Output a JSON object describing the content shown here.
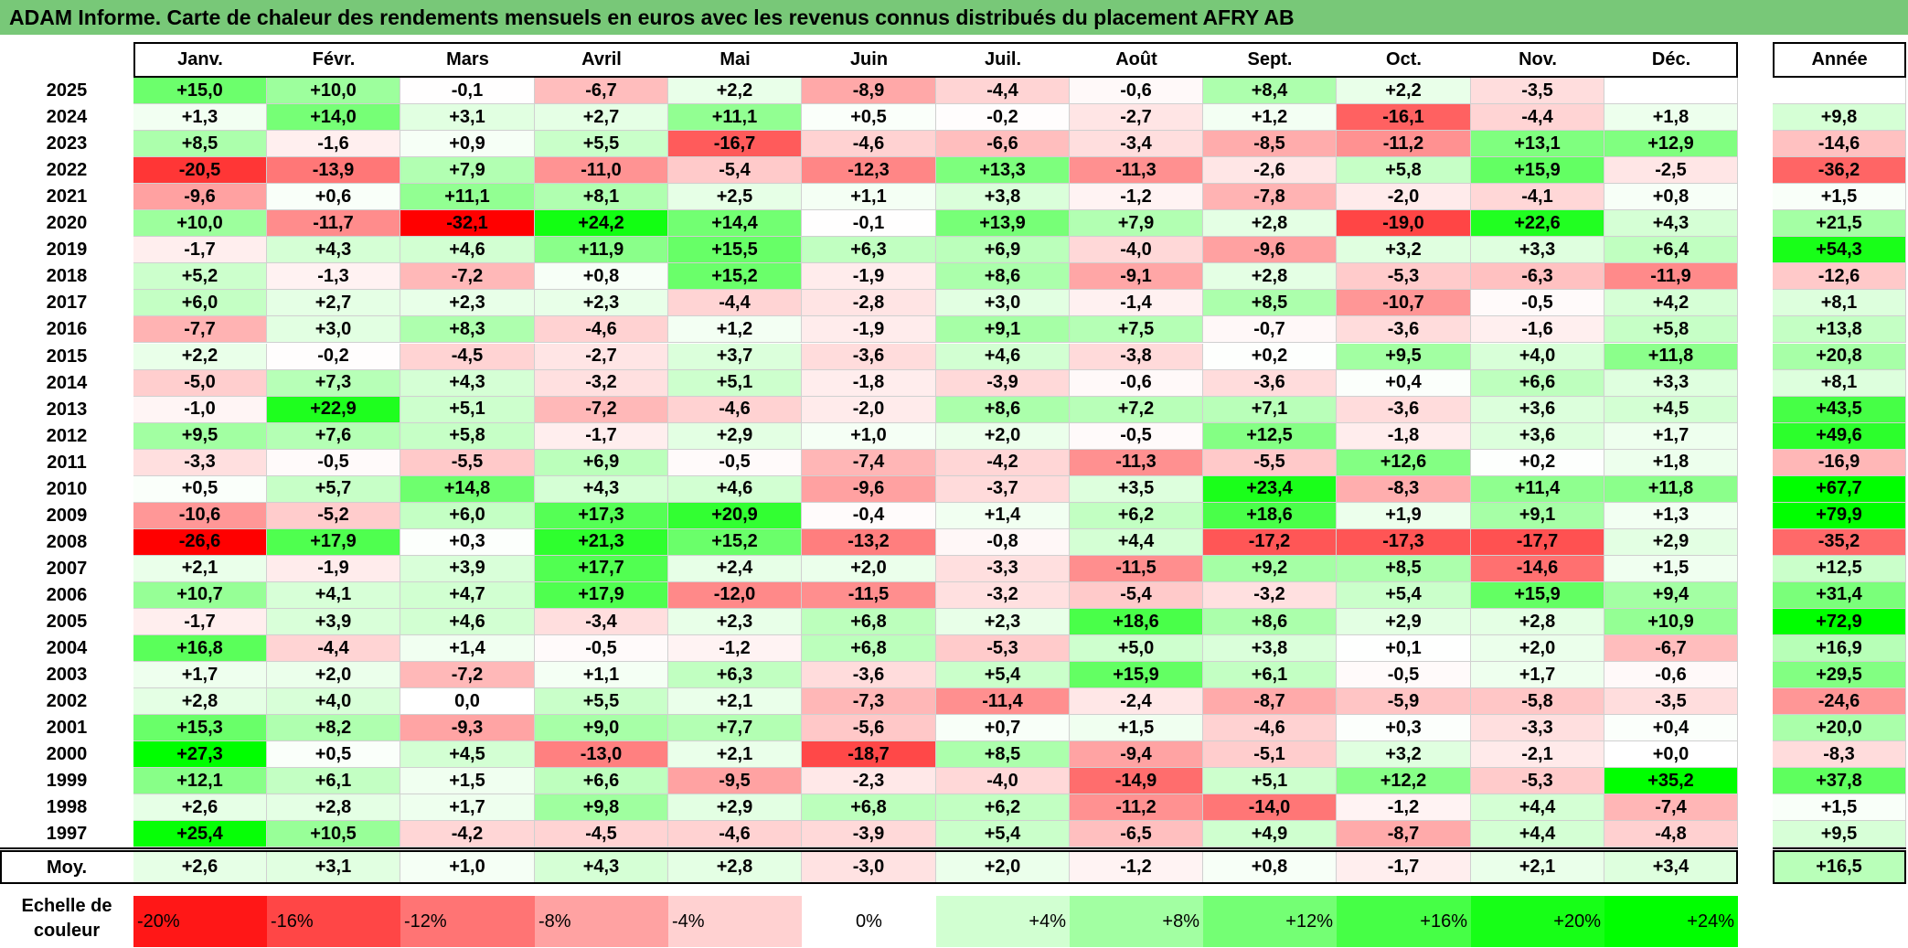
{
  "title": "ADAM Informe. Carte de chaleur des rendements mensuels en euros avec les revenus connus distribués du placement AFRY AB",
  "chart_data": {
    "type": "heatmap",
    "title": "ADAM Informe. Carte de chaleur des rendements mensuels en euros avec les revenus connus distribués du placement AFRY AB",
    "months": [
      "Janv.",
      "Févr.",
      "Mars",
      "Avril",
      "Mai",
      "Juin",
      "Juil.",
      "Août",
      "Sept.",
      "Oct.",
      "Nov.",
      "Déc."
    ],
    "year_column_label": "Année",
    "rows": [
      {
        "year": "2025",
        "values": [
          "+15,0",
          "+10,0",
          "-0,1",
          "-6,7",
          "+2,2",
          "-8,9",
          "-4,4",
          "-0,6",
          "+8,4",
          "+2,2",
          "-3,5",
          ""
        ],
        "annual": ""
      },
      {
        "year": "2024",
        "values": [
          "+1,3",
          "+14,0",
          "+3,1",
          "+2,7",
          "+11,1",
          "+0,5",
          "-0,2",
          "-2,7",
          "+1,2",
          "-16,1",
          "-4,4",
          "+1,8"
        ],
        "annual": "+9,8"
      },
      {
        "year": "2023",
        "values": [
          "+8,5",
          "-1,6",
          "+0,9",
          "+5,5",
          "-16,7",
          "-4,6",
          "-6,6",
          "-3,4",
          "-8,5",
          "-11,2",
          "+13,1",
          "+12,9"
        ],
        "annual": "-14,6"
      },
      {
        "year": "2022",
        "values": [
          "-20,5",
          "-13,9",
          "+7,9",
          "-11,0",
          "-5,4",
          "-12,3",
          "+13,3",
          "-11,3",
          "-2,6",
          "+5,8",
          "+15,9",
          "-2,5"
        ],
        "annual": "-36,2"
      },
      {
        "year": "2021",
        "values": [
          "-9,6",
          "+0,6",
          "+11,1",
          "+8,1",
          "+2,5",
          "+1,1",
          "+3,8",
          "-1,2",
          "-7,8",
          "-2,0",
          "-4,1",
          "+0,8"
        ],
        "annual": "+1,5"
      },
      {
        "year": "2020",
        "values": [
          "+10,0",
          "-11,7",
          "-32,1",
          "+24,2",
          "+14,4",
          "-0,1",
          "+13,9",
          "+7,9",
          "+2,8",
          "-19,0",
          "+22,6",
          "+4,3"
        ],
        "annual": "+21,5"
      },
      {
        "year": "2019",
        "values": [
          "-1,7",
          "+4,3",
          "+4,6",
          "+11,9",
          "+15,5",
          "+6,3",
          "+6,9",
          "-4,0",
          "-9,6",
          "+3,2",
          "+3,3",
          "+6,4"
        ],
        "annual": "+54,3"
      },
      {
        "year": "2018",
        "values": [
          "+5,2",
          "-1,3",
          "-7,2",
          "+0,8",
          "+15,2",
          "-1,9",
          "+8,6",
          "-9,1",
          "+2,8",
          "-5,3",
          "-6,3",
          "-11,9"
        ],
        "annual": "-12,6"
      },
      {
        "year": "2017",
        "values": [
          "+6,0",
          "+2,7",
          "+2,3",
          "+2,3",
          "-4,4",
          "-2,8",
          "+3,0",
          "-1,4",
          "+8,5",
          "-10,7",
          "-0,5",
          "+4,2"
        ],
        "annual": "+8,1"
      },
      {
        "year": "2016",
        "values": [
          "-7,7",
          "+3,0",
          "+8,3",
          "-4,6",
          "+1,2",
          "-1,9",
          "+9,1",
          "+7,5",
          "-0,7",
          "-3,6",
          "-1,6",
          "+5,8"
        ],
        "annual": "+13,8"
      },
      {
        "year": "2015",
        "values": [
          "+2,2",
          "-0,2",
          "-4,5",
          "-2,7",
          "+3,7",
          "-3,6",
          "+4,6",
          "-3,8",
          "+0,2",
          "+9,5",
          "+4,0",
          "+11,8"
        ],
        "annual": "+20,8"
      },
      {
        "year": "2014",
        "values": [
          "-5,0",
          "+7,3",
          "+4,3",
          "-3,2",
          "+5,1",
          "-1,8",
          "-3,9",
          "-0,6",
          "-3,6",
          "+0,4",
          "+6,6",
          "+3,3"
        ],
        "annual": "+8,1"
      },
      {
        "year": "2013",
        "values": [
          "-1,0",
          "+22,9",
          "+5,1",
          "-7,2",
          "-4,6",
          "-2,0",
          "+8,6",
          "+7,2",
          "+7,1",
          "-3,6",
          "+3,6",
          "+4,5"
        ],
        "annual": "+43,5"
      },
      {
        "year": "2012",
        "values": [
          "+9,5",
          "+7,6",
          "+5,8",
          "-1,7",
          "+2,9",
          "+1,0",
          "+2,0",
          "-0,5",
          "+12,5",
          "-1,8",
          "+3,6",
          "+1,7"
        ],
        "annual": "+49,6"
      },
      {
        "year": "2011",
        "values": [
          "-3,3",
          "-0,5",
          "-5,5",
          "+6,9",
          "-0,5",
          "-7,4",
          "-4,2",
          "-11,3",
          "-5,5",
          "+12,6",
          "+0,2",
          "+1,8"
        ],
        "annual": "-16,9"
      },
      {
        "year": "2010",
        "values": [
          "+0,5",
          "+5,7",
          "+14,8",
          "+4,3",
          "+4,6",
          "-9,6",
          "-3,7",
          "+3,5",
          "+23,4",
          "-8,3",
          "+11,4",
          "+11,8"
        ],
        "annual": "+67,7"
      },
      {
        "year": "2009",
        "values": [
          "-10,6",
          "-5,2",
          "+6,0",
          "+17,3",
          "+20,9",
          "-0,4",
          "+1,4",
          "+6,2",
          "+18,6",
          "+1,9",
          "+9,1",
          "+1,3"
        ],
        "annual": "+79,9"
      },
      {
        "year": "2008",
        "values": [
          "-26,6",
          "+17,9",
          "+0,3",
          "+21,3",
          "+15,2",
          "-13,2",
          "-0,8",
          "+4,4",
          "-17,2",
          "-17,3",
          "-17,7",
          "+2,9"
        ],
        "annual": "-35,2"
      },
      {
        "year": "2007",
        "values": [
          "+2,1",
          "-1,9",
          "+3,9",
          "+17,7",
          "+2,4",
          "+2,0",
          "-3,3",
          "-11,5",
          "+9,2",
          "+8,5",
          "-14,6",
          "+1,5"
        ],
        "annual": "+12,5"
      },
      {
        "year": "2006",
        "values": [
          "+10,7",
          "+4,1",
          "+4,7",
          "+17,9",
          "-12,0",
          "-11,5",
          "-3,2",
          "-5,4",
          "-3,2",
          "+5,4",
          "+15,9",
          "+9,4"
        ],
        "annual": "+31,4"
      },
      {
        "year": "2005",
        "values": [
          "-1,7",
          "+3,9",
          "+4,6",
          "-3,4",
          "+2,3",
          "+6,8",
          "+2,3",
          "+18,6",
          "+8,6",
          "+2,9",
          "+2,8",
          "+10,9"
        ],
        "annual": "+72,9"
      },
      {
        "year": "2004",
        "values": [
          "+16,8",
          "-4,4",
          "+1,4",
          "-0,5",
          "-1,2",
          "+6,8",
          "-5,3",
          "+5,0",
          "+3,8",
          "+0,1",
          "+2,0",
          "-6,7"
        ],
        "annual": "+16,9"
      },
      {
        "year": "2003",
        "values": [
          "+1,7",
          "+2,0",
          "-7,2",
          "+1,1",
          "+6,3",
          "-3,6",
          "+5,4",
          "+15,9",
          "+6,1",
          "-0,5",
          "+1,7",
          "-0,6"
        ],
        "annual": "+29,5"
      },
      {
        "year": "2002",
        "values": [
          "+2,8",
          "+4,0",
          "0,0",
          "+5,5",
          "+2,1",
          "-7,3",
          "-11,4",
          "-2,4",
          "-8,7",
          "-5,9",
          "-5,8",
          "-3,5"
        ],
        "annual": "-24,6"
      },
      {
        "year": "2001",
        "values": [
          "+15,3",
          "+8,2",
          "-9,3",
          "+9,0",
          "+7,7",
          "-5,6",
          "+0,7",
          "+1,5",
          "-4,6",
          "+0,3",
          "-3,3",
          "+0,4"
        ],
        "annual": "+20,0"
      },
      {
        "year": "2000",
        "values": [
          "+27,3",
          "+0,5",
          "+4,5",
          "-13,0",
          "+2,1",
          "-18,7",
          "+8,5",
          "-9,4",
          "-5,1",
          "+3,2",
          "-2,1",
          "+0,0"
        ],
        "annual": "-8,3"
      },
      {
        "year": "1999",
        "values": [
          "+12,1",
          "+6,1",
          "+1,5",
          "+6,6",
          "-9,5",
          "-2,3",
          "-4,0",
          "-14,9",
          "+5,1",
          "+12,2",
          "-5,3",
          "+35,2"
        ],
        "annual": "+37,8"
      },
      {
        "year": "1998",
        "values": [
          "+2,6",
          "+2,8",
          "+1,7",
          "+9,8",
          "+2,9",
          "+6,8",
          "+6,2",
          "-11,2",
          "-14,0",
          "-1,2",
          "+4,4",
          "-7,4"
        ],
        "annual": "+1,5"
      },
      {
        "year": "1997",
        "values": [
          "+25,4",
          "+10,5",
          "-4,2",
          "-4,5",
          "-4,6",
          "-3,9",
          "+5,4",
          "-6,5",
          "+4,9",
          "-8,7",
          "+4,4",
          "-4,8"
        ],
        "annual": "+9,5"
      }
    ],
    "average": {
      "label": "Moy.",
      "values": [
        "+2,6",
        "+3,1",
        "+1,0",
        "+4,3",
        "+2,8",
        "-3,0",
        "+2,0",
        "-1,2",
        "+0,8",
        "-1,7",
        "+2,1",
        "+3,4"
      ],
      "annual": "+16,5"
    },
    "scale": {
      "label": "Echelle de\ncouleur",
      "steps": [
        "-20%",
        "-16%",
        "-12%",
        "-8%",
        "-4%",
        "0%",
        "+4%",
        "+8%",
        "+12%",
        "+16%",
        "+20%",
        "+24%"
      ],
      "step_values": [
        -20,
        -16,
        -12,
        -8,
        -4,
        0,
        4,
        8,
        12,
        16,
        20,
        24
      ]
    },
    "colors": {
      "negative_max": "#ff0000",
      "neutral": "#ffffff",
      "positive_max": "#00ff00",
      "title_bar": "#78c878"
    }
  }
}
